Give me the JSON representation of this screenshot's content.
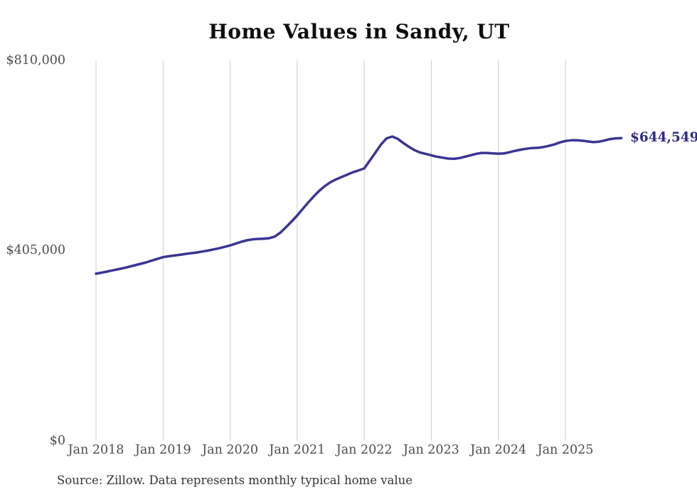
{
  "page": {
    "background": "#ffffff"
  },
  "header": {
    "title": "Home Values in Sandy, UT"
  },
  "chart": {
    "end_label": "$644,549",
    "source_note": "Source: Zillow. Data represents monthly typical home value",
    "colors": {
      "line": "#3a3593",
      "end_label": "#2e2b8a",
      "grid": "#cccccc",
      "tick_text": "#4d4d4d",
      "title_text": "#0d0d0d",
      "source_text": "#333333"
    }
  },
  "chart_data": {
    "type": "line",
    "title": "Home Values in Sandy, UT",
    "series_name": "Monthly typical home value (Zillow)",
    "x": [
      "2018-01",
      "2018-02",
      "2018-03",
      "2018-04",
      "2018-05",
      "2018-06",
      "2018-07",
      "2018-08",
      "2018-09",
      "2018-10",
      "2018-11",
      "2018-12",
      "2019-01",
      "2019-02",
      "2019-03",
      "2019-04",
      "2019-05",
      "2019-06",
      "2019-07",
      "2019-08",
      "2019-09",
      "2019-10",
      "2019-11",
      "2019-12",
      "2020-01",
      "2020-02",
      "2020-03",
      "2020-04",
      "2020-05",
      "2020-06",
      "2020-07",
      "2020-08",
      "2020-09",
      "2020-10",
      "2020-11",
      "2020-12",
      "2021-01",
      "2021-02",
      "2021-03",
      "2021-04",
      "2021-05",
      "2021-06",
      "2021-07",
      "2021-08",
      "2021-09",
      "2021-10",
      "2021-11",
      "2021-12",
      "2022-01",
      "2022-02",
      "2022-03",
      "2022-04",
      "2022-05",
      "2022-06",
      "2022-07",
      "2022-08",
      "2022-09",
      "2022-10",
      "2022-11",
      "2022-12",
      "2023-01",
      "2023-02",
      "2023-03",
      "2023-04",
      "2023-05",
      "2023-06",
      "2023-07",
      "2023-08",
      "2023-09",
      "2023-10",
      "2023-11",
      "2023-12",
      "2024-01",
      "2024-02",
      "2024-03",
      "2024-04",
      "2024-05",
      "2024-06",
      "2024-07",
      "2024-08",
      "2024-09",
      "2024-10",
      "2024-11",
      "2024-12",
      "2025-01",
      "2025-02",
      "2025-03",
      "2025-04",
      "2025-05",
      "2025-06",
      "2025-07",
      "2025-08",
      "2025-09",
      "2025-10",
      "2025-11"
    ],
    "values": [
      356000,
      358000,
      360500,
      363000,
      365500,
      368000,
      371000,
      374000,
      377000,
      380000,
      384000,
      387500,
      391000,
      393000,
      394500,
      396000,
      398000,
      399500,
      401000,
      403000,
      405000,
      407500,
      410000,
      413000,
      416000,
      420000,
      424000,
      427000,
      429000,
      430000,
      430500,
      431500,
      435000,
      443500,
      455000,
      467000,
      480000,
      494000,
      508000,
      521000,
      533000,
      543000,
      551000,
      557000,
      562000,
      567000,
      572000,
      576000,
      580000,
      597000,
      614000,
      631000,
      644000,
      648000,
      643000,
      634000,
      626000,
      619000,
      614000,
      611000,
      608000,
      605000,
      603000,
      601000,
      600500,
      602000,
      605000,
      608000,
      611000,
      613000,
      613000,
      612000,
      611500,
      612000,
      614500,
      617500,
      620000,
      622000,
      623500,
      624000,
      625500,
      628000,
      631000,
      635500,
      638500,
      640000,
      640000,
      639000,
      637500,
      636000,
      637000,
      639500,
      642500,
      644000,
      644549
    ],
    "ylim": [
      0,
      810000
    ],
    "y_ticks": [
      {
        "value": 810000,
        "label": "$810,000"
      },
      {
        "value": 405000,
        "label": "$405,000"
      },
      {
        "value": 0,
        "label": "$0"
      }
    ],
    "x_ticks": [
      {
        "month_index": 0,
        "label": "Jan 2018"
      },
      {
        "month_index": 12,
        "label": "Jan 2019"
      },
      {
        "month_index": 24,
        "label": "Jan 2020"
      },
      {
        "month_index": 36,
        "label": "Jan 2021"
      },
      {
        "month_index": 48,
        "label": "Jan 2022"
      },
      {
        "month_index": 60,
        "label": "Jan 2023"
      },
      {
        "month_index": 72,
        "label": "Jan 2024"
      },
      {
        "month_index": 84,
        "label": "Jan 2025"
      }
    ],
    "grid": "vertical-only",
    "legend": "none",
    "annotation": {
      "text": "$644,549",
      "value": 644549
    }
  }
}
